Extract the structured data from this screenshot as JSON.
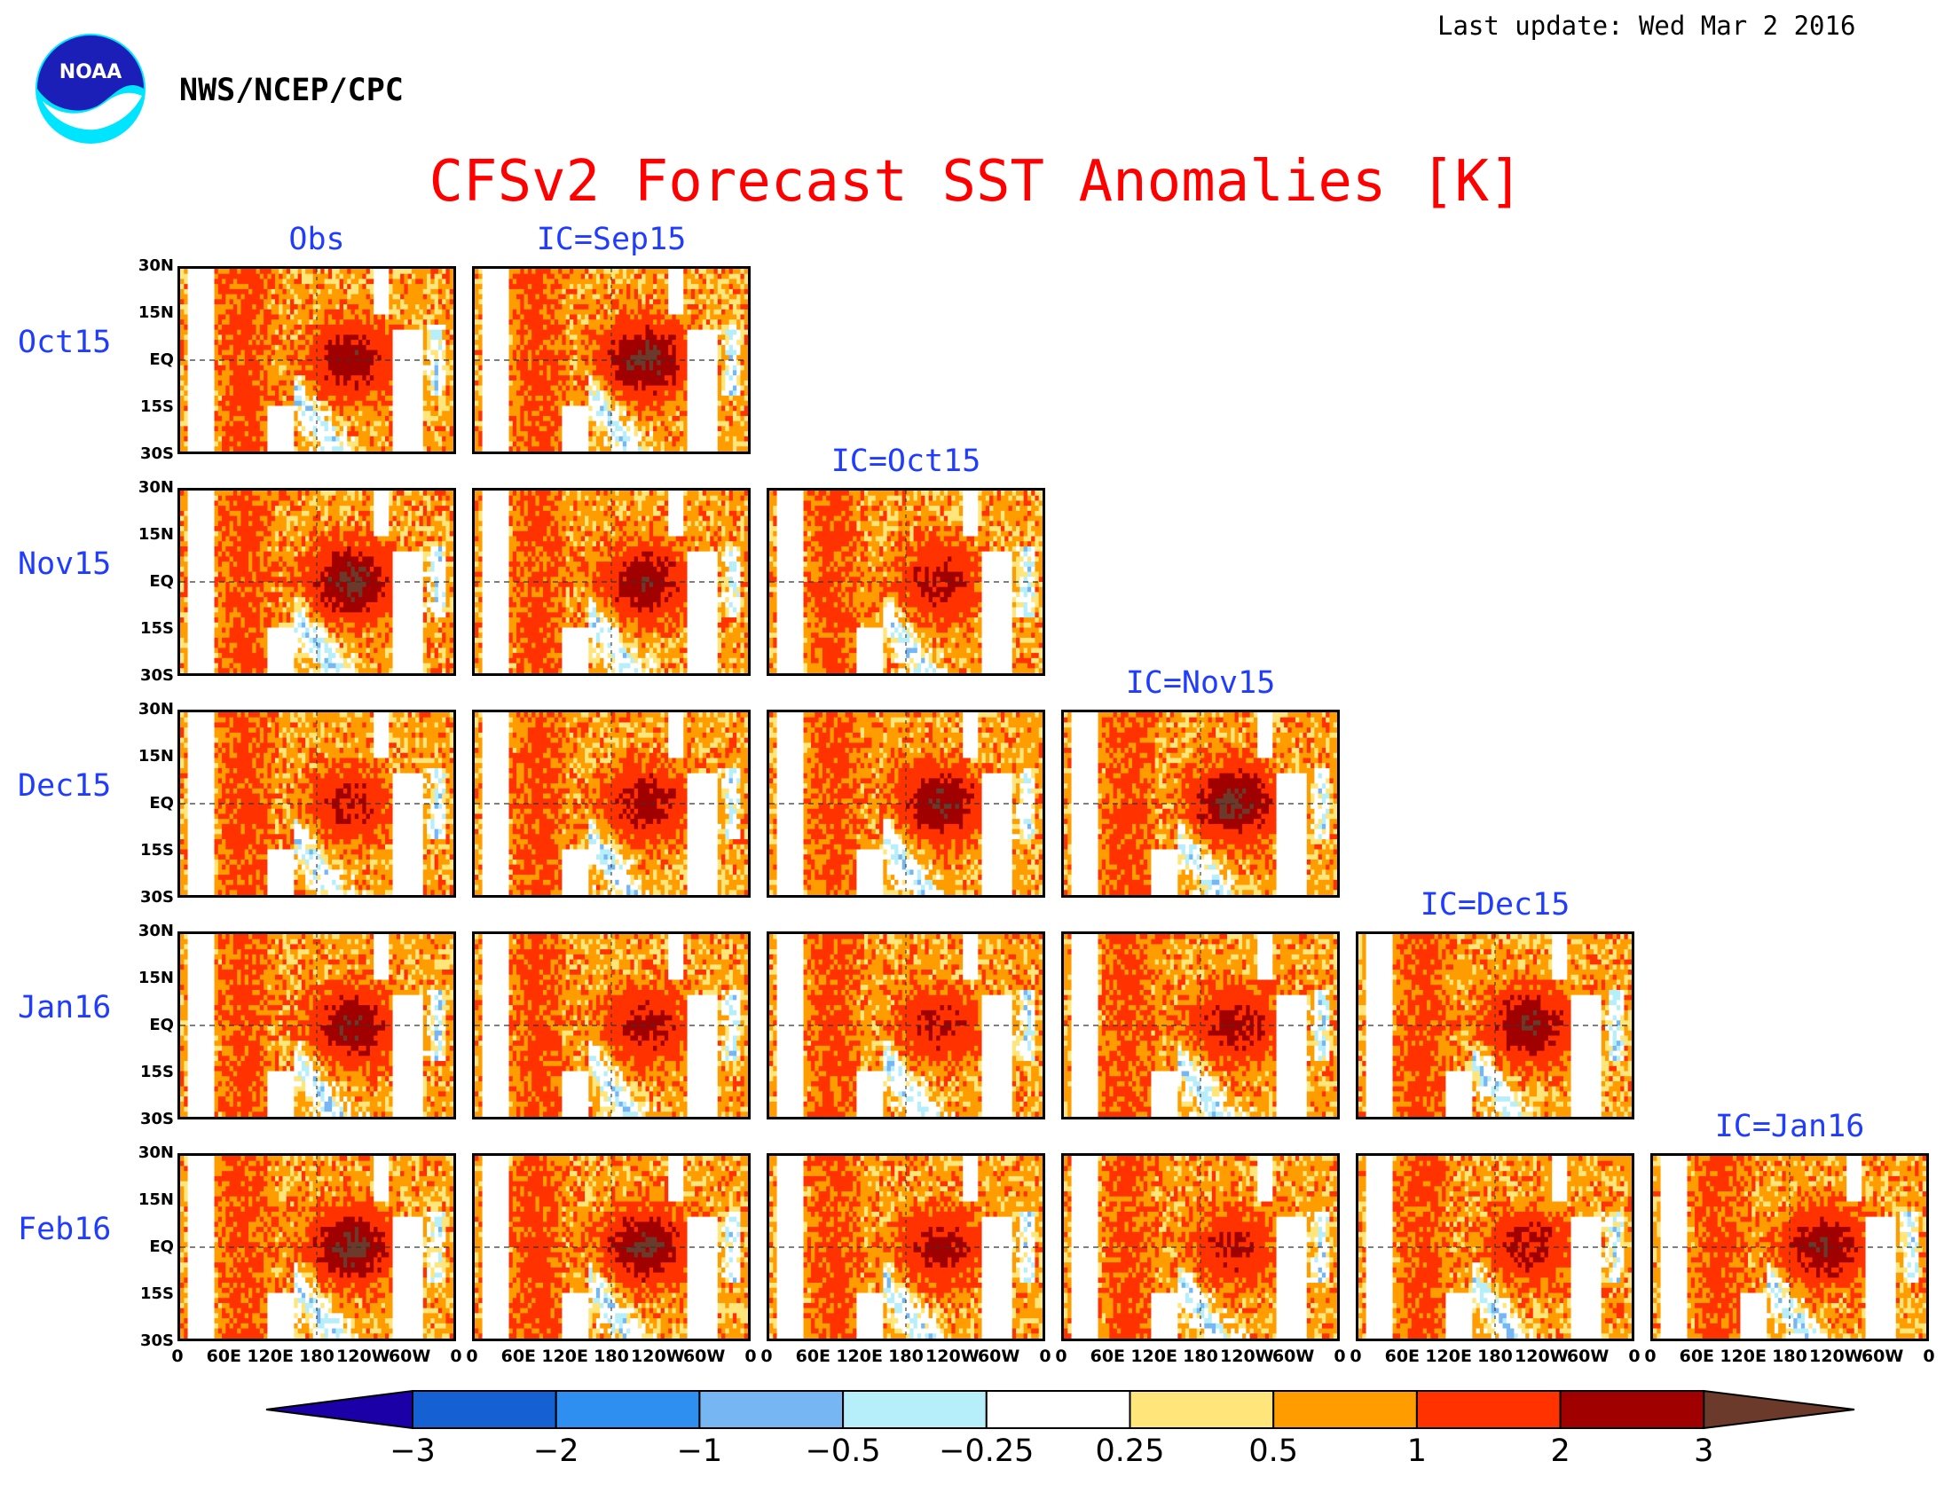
{
  "header": {
    "last_update": "Last update: Wed Mar 2 2016",
    "agency": "NWS/NCEP/CPC",
    "logo_text": "NOAA"
  },
  "chart_data": {
    "type": "heatmap",
    "title": "CFSv2 Forecast SST Anomalies [K]",
    "unit": "K",
    "columns": [
      "Obs",
      "IC=Sep15",
      "IC=Oct15",
      "IC=Nov15",
      "IC=Dec15",
      "IC=Jan16"
    ],
    "rows": [
      "Oct15",
      "Nov15",
      "Dec15",
      "Jan16",
      "Feb16"
    ],
    "panels": [
      {
        "row": "Oct15",
        "column": "Obs"
      },
      {
        "row": "Oct15",
        "column": "IC=Sep15"
      },
      {
        "row": "Nov15",
        "column": "Obs"
      },
      {
        "row": "Nov15",
        "column": "IC=Sep15"
      },
      {
        "row": "Nov15",
        "column": "IC=Oct15"
      },
      {
        "row": "Dec15",
        "column": "Obs"
      },
      {
        "row": "Dec15",
        "column": "IC=Sep15"
      },
      {
        "row": "Dec15",
        "column": "IC=Oct15"
      },
      {
        "row": "Dec15",
        "column": "IC=Nov15"
      },
      {
        "row": "Jan16",
        "column": "Obs"
      },
      {
        "row": "Jan16",
        "column": "IC=Sep15"
      },
      {
        "row": "Jan16",
        "column": "IC=Oct15"
      },
      {
        "row": "Jan16",
        "column": "IC=Nov15"
      },
      {
        "row": "Jan16",
        "column": "IC=Dec15"
      },
      {
        "row": "Feb16",
        "column": "Obs"
      },
      {
        "row": "Feb16",
        "column": "IC=Sep15"
      },
      {
        "row": "Feb16",
        "column": "IC=Oct15"
      },
      {
        "row": "Feb16",
        "column": "IC=Nov15"
      },
      {
        "row": "Feb16",
        "column": "IC=Dec15"
      },
      {
        "row": "Feb16",
        "column": "IC=Jan16"
      }
    ],
    "lat_ticks": [
      "30N",
      "15N",
      "EQ",
      "15S",
      "30S"
    ],
    "lon_ticks": [
      "0",
      "60E",
      "120E",
      "180",
      "120W",
      "60W",
      "0"
    ],
    "ylim": [
      -30,
      30
    ],
    "xlim": [
      0,
      360
    ],
    "colorbar": {
      "ticks": [
        "−3",
        "−2",
        "−1",
        "−0.5",
        "−0.25",
        "0.25",
        "0.5",
        "1",
        "2",
        "3"
      ],
      "boundaries": [
        -3,
        -2,
        -1,
        -0.5,
        -0.25,
        0.25,
        0.5,
        1,
        2,
        3
      ],
      "colors": [
        "#1b00a8",
        "#1560d2",
        "#2e8ff0",
        "#76b7f3",
        "#b6effa",
        "#ffffff",
        "#ffe57a",
        "#ff9d00",
        "#ff3200",
        "#a00000",
        "#6b3a2a"
      ]
    }
  }
}
